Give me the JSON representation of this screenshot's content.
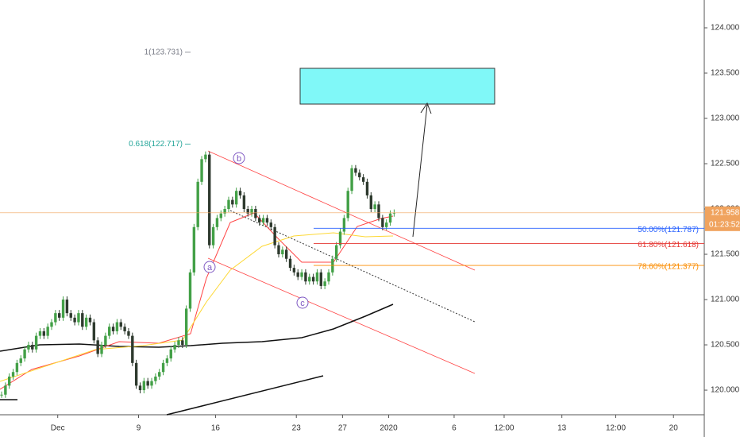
{
  "chart_data": {
    "type": "candlestick",
    "values": [
      119.95,
      120.05,
      120.15,
      120.2,
      120.3,
      120.35,
      120.45,
      120.5,
      120.45,
      120.6,
      120.65,
      120.6,
      120.7,
      120.75,
      120.85,
      120.8,
      121.0,
      120.85,
      120.8,
      120.75,
      120.85,
      120.7,
      120.8,
      120.75,
      120.55,
      120.4,
      120.5,
      120.6,
      120.7,
      120.65,
      120.75,
      120.7,
      120.65,
      120.6,
      120.3,
      120.05,
      120.0,
      120.1,
      120.05,
      120.1,
      120.15,
      120.2,
      120.3,
      120.35,
      120.45,
      120.5,
      120.55,
      120.5,
      120.9,
      121.3,
      121.8,
      122.3,
      122.55,
      122.6,
      121.6,
      121.8,
      121.9,
      121.95,
      122.0,
      122.1,
      122.05,
      122.2,
      122.15,
      122.0,
      121.95,
      122.0,
      121.9,
      121.85,
      121.9,
      121.85,
      121.8,
      121.6,
      121.5,
      121.55,
      121.45,
      121.35,
      121.3,
      121.25,
      121.3,
      121.2,
      121.25,
      121.2,
      121.3,
      121.15,
      121.2,
      121.3,
      121.45,
      121.6,
      121.75,
      121.9,
      122.2,
      122.45,
      122.4,
      122.35,
      122.3,
      122.15,
      122.0,
      122.05,
      121.9,
      121.8,
      121.85,
      121.95,
      121.96
    ],
    "up_color": "#43a047",
    "down_color": "#2e3a2e",
    "ylim": [
      119.746,
      124.307
    ],
    "yticks": [
      {
        "value": 120,
        "label": "120.000"
      },
      {
        "value": 120.5,
        "label": "120.500"
      },
      {
        "value": 121,
        "label": "121.000"
      },
      {
        "value": 121.5,
        "label": "121.500"
      },
      {
        "value": 122,
        "label": "122.000"
      },
      {
        "value": 122.5,
        "label": "122.500"
      },
      {
        "value": 123,
        "label": "123.000"
      },
      {
        "value": 123.5,
        "label": "123.500"
      },
      {
        "value": 124,
        "label": "124.000"
      }
    ],
    "xlim": [
      0,
      183
    ],
    "xticks": [
      {
        "value": 15,
        "label": "Dec"
      },
      {
        "value": 36,
        "label": "9"
      },
      {
        "value": 56,
        "label": "16"
      },
      {
        "value": 77,
        "label": "23"
      },
      {
        "value": 89,
        "label": "27"
      },
      {
        "value": 101,
        "label": "2020"
      },
      {
        "value": 118,
        "label": "6"
      },
      {
        "value": 131,
        "label": "12:00"
      },
      {
        "value": 146,
        "label": "13"
      },
      {
        "value": 160,
        "label": "12:00"
      },
      {
        "value": 175,
        "label": "20"
      }
    ],
    "grid": false,
    "fib_levels": [
      {
        "label": "50.00%(121.787)",
        "value": 121.787,
        "color": "#2962ff"
      },
      {
        "label": "61.80%(121.618)",
        "value": 121.618,
        "color": "#e53935"
      },
      {
        "label": "78.60%(121.377)",
        "value": 121.377,
        "color": "#fb8c00"
      }
    ],
    "projections": [
      {
        "label": "1(123.731)",
        "value": 123.731,
        "color": "#787b86"
      },
      {
        "label": "0.618(122.717)",
        "value": 122.717,
        "color": "#26a69a"
      }
    ],
    "last_price": {
      "value": 121.958,
      "label": "121.958",
      "color": "#f0a35e"
    },
    "countdown": "01:23:52",
    "wave_labels": [
      "a",
      "b",
      "c"
    ]
  }
}
